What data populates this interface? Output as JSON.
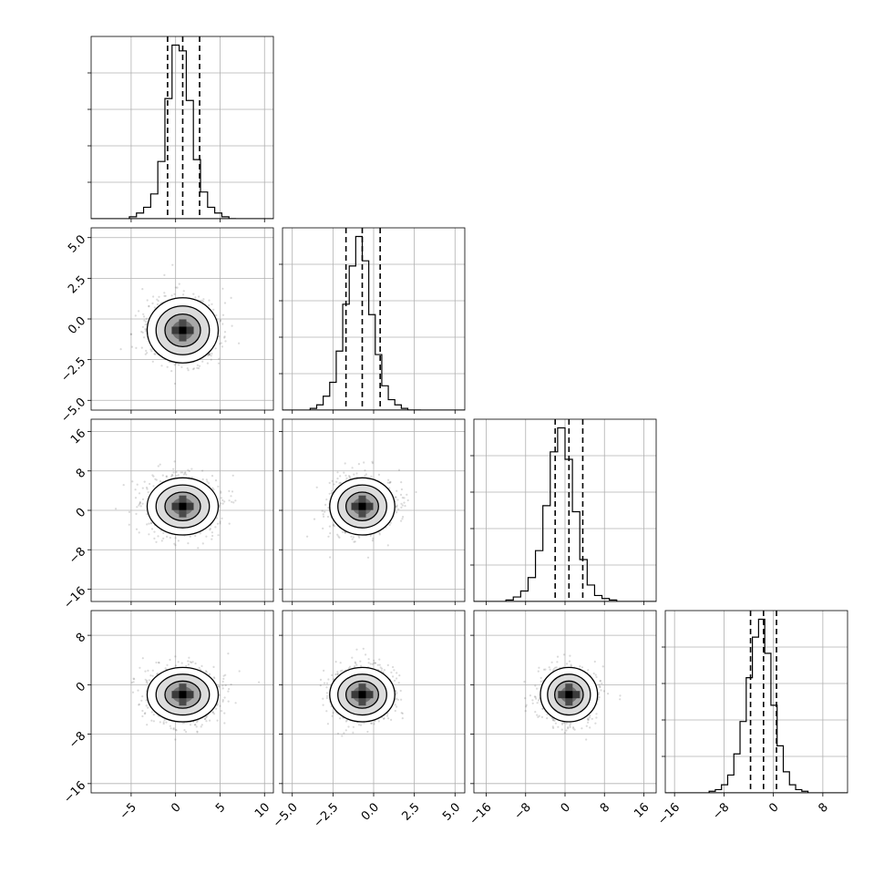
{
  "chart_data": {
    "type": "corner",
    "parameters": [
      {
        "index": 0,
        "range": [
          -9.5,
          11.0
        ],
        "ticks": [
          -5,
          0,
          5,
          10
        ],
        "tick_labels": [
          "−5",
          "0",
          "5",
          "10"
        ],
        "mean": 0.8,
        "sigma": 2.0,
        "quantiles": [
          -0.9,
          0.8,
          2.7
        ]
      },
      {
        "index": 1,
        "range": [
          -5.6,
          5.6
        ],
        "ticks": [
          -5.0,
          -2.5,
          0.0,
          2.5,
          5.0
        ],
        "tick_labels": [
          "−5.0",
          "−2.5",
          "0.0",
          "2.5",
          "5.0"
        ],
        "mean": -0.7,
        "sigma": 1.0,
        "quantiles": [
          -1.7,
          -0.7,
          0.4
        ]
      },
      {
        "index": 2,
        "range": [
          -18.5,
          18.5
        ],
        "ticks": [
          -16,
          -8,
          0,
          8,
          16
        ],
        "tick_labels": [
          "−16",
          "−8",
          "0",
          "8",
          "16"
        ],
        "mean": 0.8,
        "sigma": 2.9,
        "quantiles": [
          -2.0,
          0.8,
          3.6
        ]
      },
      {
        "index": 3,
        "range": [
          -17.5,
          12.0
        ],
        "ticks": [
          -16,
          -8,
          0,
          8
        ],
        "tick_labels": [
          "−16",
          "−8",
          "0",
          "8"
        ],
        "mean": -1.6,
        "sigma": 2.2,
        "quantiles": [
          -3.7,
          -1.6,
          0.5
        ]
      }
    ],
    "histograms": [
      {
        "param": 0,
        "bin_edges": [
          -5.2,
          -4.4,
          -3.6,
          -2.8,
          -2.0,
          -1.2,
          -0.4,
          0.4,
          1.2,
          2.0,
          2.8,
          3.6,
          4.4,
          5.2,
          6.0,
          6.8
        ],
        "counts": [
          1,
          3,
          6,
          13,
          30,
          63,
          91,
          88,
          62,
          31,
          14,
          6,
          3,
          1,
          0
        ]
      },
      {
        "param": 1,
        "bin_edges": [
          -3.9,
          -3.5,
          -3.1,
          -2.7,
          -2.3,
          -1.9,
          -1.5,
          -1.1,
          -0.7,
          -0.3,
          0.1,
          0.5,
          0.9,
          1.3,
          1.7,
          2.1,
          2.5,
          2.9
        ],
        "counts": [
          1,
          3,
          8,
          16,
          34,
          61,
          83,
          100,
          86,
          55,
          32,
          14,
          6,
          3,
          1,
          0,
          0
        ]
      },
      {
        "param": 2,
        "bin_edges": [
          -12.0,
          -10.5,
          -9.0,
          -7.5,
          -6.0,
          -4.5,
          -3.0,
          -1.5,
          0.0,
          1.5,
          3.0,
          4.5,
          6.0,
          7.5,
          9.0,
          10.5
        ],
        "counts": [
          1,
          3,
          7,
          16,
          34,
          64,
          100,
          116,
          95,
          60,
          28,
          11,
          4,
          2,
          1
        ]
      },
      {
        "param": 3,
        "bin_edges": [
          -10.4,
          -9.4,
          -8.4,
          -7.4,
          -6.4,
          -5.4,
          -4.4,
          -3.4,
          -2.4,
          -1.4,
          -0.4,
          0.6,
          1.6,
          2.6,
          3.6,
          4.6,
          5.6
        ],
        "counts": [
          1,
          2,
          5,
          11,
          24,
          44,
          71,
          96,
          107,
          86,
          54,
          29,
          13,
          5,
          2,
          1
        ]
      }
    ],
    "grid": true,
    "title": "",
    "xlabel": "",
    "ylabel": ""
  }
}
